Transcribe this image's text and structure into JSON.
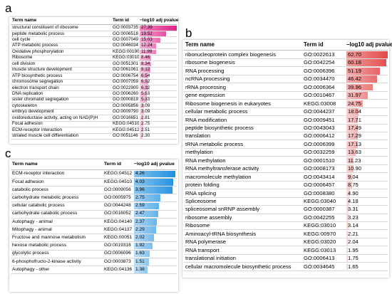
{
  "chart_data": [
    {
      "type": "table",
      "panel_label": "a",
      "columns": [
        "Term name",
        "Term id",
        "−log10 adj pvalue"
      ],
      "color": "#e0218a",
      "rows": [
        {
          "name": "structural constituent of ribosome",
          "id": "GO:0003735",
          "value": "27.39"
        },
        {
          "name": "peptide metabolic process",
          "id": "GO:0006518",
          "value": "19.52"
        },
        {
          "name": "cell cycle",
          "id": "GO:0007049",
          "value": "15.03"
        },
        {
          "name": "ATP metabolic process",
          "id": "GO:0046034",
          "value": "12.24"
        },
        {
          "name": "Oxidative phosphorylation",
          "id": "KEGG:00190",
          "value": "11.99"
        },
        {
          "name": "Ribosome",
          "id": "KEGG:03010",
          "value": "8.46"
        },
        {
          "name": "cell division",
          "id": "GO:0051301",
          "value": "8.34"
        },
        {
          "name": "muscle structure development",
          "id": "GO:0061061",
          "value": "8.12"
        },
        {
          "name": "ATP biosynthetic process",
          "id": "GO:0006754",
          "value": "6.54"
        },
        {
          "name": "chromosome segregation",
          "id": "GO:0007059",
          "value": "6.52"
        },
        {
          "name": "electron transport chain",
          "id": "GO:0022900",
          "value": "6.32"
        },
        {
          "name": "DNA replication",
          "id": "GO:0006260",
          "value": "5.53"
        },
        {
          "name": "sister chromatid segregation",
          "id": "GO:0000819",
          "value": "5.33"
        },
        {
          "name": "cytoskeleton",
          "id": "GO:0005856",
          "value": "3.09"
        },
        {
          "name": "embryo development",
          "id": "GO:0009790",
          "value": "3.09"
        },
        {
          "name": "oxidoreductase activity, acting on NAD(P)H",
          "id": "GO:0016651",
          "value": "2.81"
        },
        {
          "name": "Focal adhesion",
          "id": "KEGG:04510",
          "value": "2.75"
        },
        {
          "name": "ECM-receptor interaction",
          "id": "KEGG:04512",
          "value": "2.51"
        },
        {
          "name": "striated muscle cell differentiation",
          "id": "GO:0051146",
          "value": "2.30"
        }
      ]
    },
    {
      "type": "table",
      "panel_label": "b",
      "columns": [
        "Term name",
        "Term id",
        "−log10 adj pvalue"
      ],
      "color": "#e34a4a",
      "rows": [
        {
          "name": "ribonucleoprotein complex biogenesis",
          "id": "GO:0022613",
          "value": "62.70"
        },
        {
          "name": "ribosome biogenesis",
          "id": "GO:0042254",
          "value": "60.18"
        },
        {
          "name": "RNA processing",
          "id": "GO:0006396",
          "value": "51.19"
        },
        {
          "name": "ncRNA processing",
          "id": "GO:0034470",
          "value": "46.42"
        },
        {
          "name": "rRNA processing",
          "id": "GO:0006364",
          "value": "39.96"
        },
        {
          "name": "gene expression",
          "id": "GO:0010467",
          "value": "31.97"
        },
        {
          "name": "Ribosome biogenesis in eukaryotes",
          "id": "KEGG:03008",
          "value": "24.75"
        },
        {
          "name": "cellular metabolic process",
          "id": "GO:0044237",
          "value": "18.04"
        },
        {
          "name": "RNA modification",
          "id": "GO:0009451",
          "value": "17.71"
        },
        {
          "name": "peptide biosynthetic process",
          "id": "GO:0043043",
          "value": "17.49"
        },
        {
          "name": "translation",
          "id": "GO:0006412",
          "value": "17.29"
        },
        {
          "name": "tRNA metabolic process",
          "id": "GO:0006399",
          "value": "17.13"
        },
        {
          "name": "methylation",
          "id": "GO:0032259",
          "value": "13.63"
        },
        {
          "name": "RNA methylation",
          "id": "GO:0001510",
          "value": "11.23"
        },
        {
          "name": "RNA methyltransferase activity",
          "id": "GO:0008173",
          "value": "10.90"
        },
        {
          "name": "macromolecule methylation",
          "id": "GO:0043414",
          "value": "9.04"
        },
        {
          "name": "protein folding",
          "id": "GO:0006457",
          "value": "8.75"
        },
        {
          "name": "RNA splicing",
          "id": "GO:0008380",
          "value": "4.90"
        },
        {
          "name": "Spliceosome",
          "id": "KEGG:03040",
          "value": "4.18"
        },
        {
          "name": "spliceosomal snRNP assembly",
          "id": "GO:0000387",
          "value": "3.31"
        },
        {
          "name": "ribosome assembly",
          "id": "GO:0042255",
          "value": "3.23"
        },
        {
          "name": "Ribosome",
          "id": "KEGG:03010",
          "value": "3.14"
        },
        {
          "name": "Aminoacyl-tRNA biosynthesis",
          "id": "KEGG:00970",
          "value": "2.21"
        },
        {
          "name": "RNA polymerase",
          "id": "KEGG:03020",
          "value": "2.04"
        },
        {
          "name": "RNA transport",
          "id": "KEGG:03013",
          "value": "1.95"
        },
        {
          "name": "translational initiation",
          "id": "GO:0006413",
          "value": "1.75"
        },
        {
          "name": "cellular macromolecule biosynthetic process",
          "id": "GO:0034645",
          "value": "1.65"
        }
      ]
    },
    {
      "type": "table",
      "panel_label": "c",
      "columns": [
        "Term name",
        "Term id",
        "−log10 adj pvalue"
      ],
      "color": "#1e90e0",
      "rows": [
        {
          "name": "ECM-receptor interaction",
          "id": "KEGG:04512",
          "value": "4.26"
        },
        {
          "name": "Focal adhesion",
          "id": "KEGG:04510",
          "value": "4.03"
        },
        {
          "name": "catabolic process",
          "id": "GO:0009056",
          "value": "3.96"
        },
        {
          "name": "carbohydrate metabolic process",
          "id": "GO:0005975",
          "value": "2.75"
        },
        {
          "name": "cellular catabolic process",
          "id": "GO:0044248",
          "value": "2.59"
        },
        {
          "name": "carbohydrate catabolic process",
          "id": "GO:0016052",
          "value": "2.47"
        },
        {
          "name": "Autophagy - animal",
          "id": "KEGG:04140",
          "value": "2.37"
        },
        {
          "name": "Mitophagy - animal",
          "id": "KEGG:04137",
          "value": "2.29"
        },
        {
          "name": "Fructose and mannose metabolism",
          "id": "KEGG:00051",
          "value": "2.02"
        },
        {
          "name": "hexose metabolic process",
          "id": "GO:0019318",
          "value": "1.92"
        },
        {
          "name": "glycolytic process",
          "id": "GO:0006096",
          "value": "1.63"
        },
        {
          "name": "6-phosphofructo-2-kinase activity",
          "id": "GO:0003873",
          "value": "1.51"
        },
        {
          "name": "Autophagy - other",
          "id": "KEGG:04136",
          "value": "1.38"
        }
      ]
    }
  ]
}
